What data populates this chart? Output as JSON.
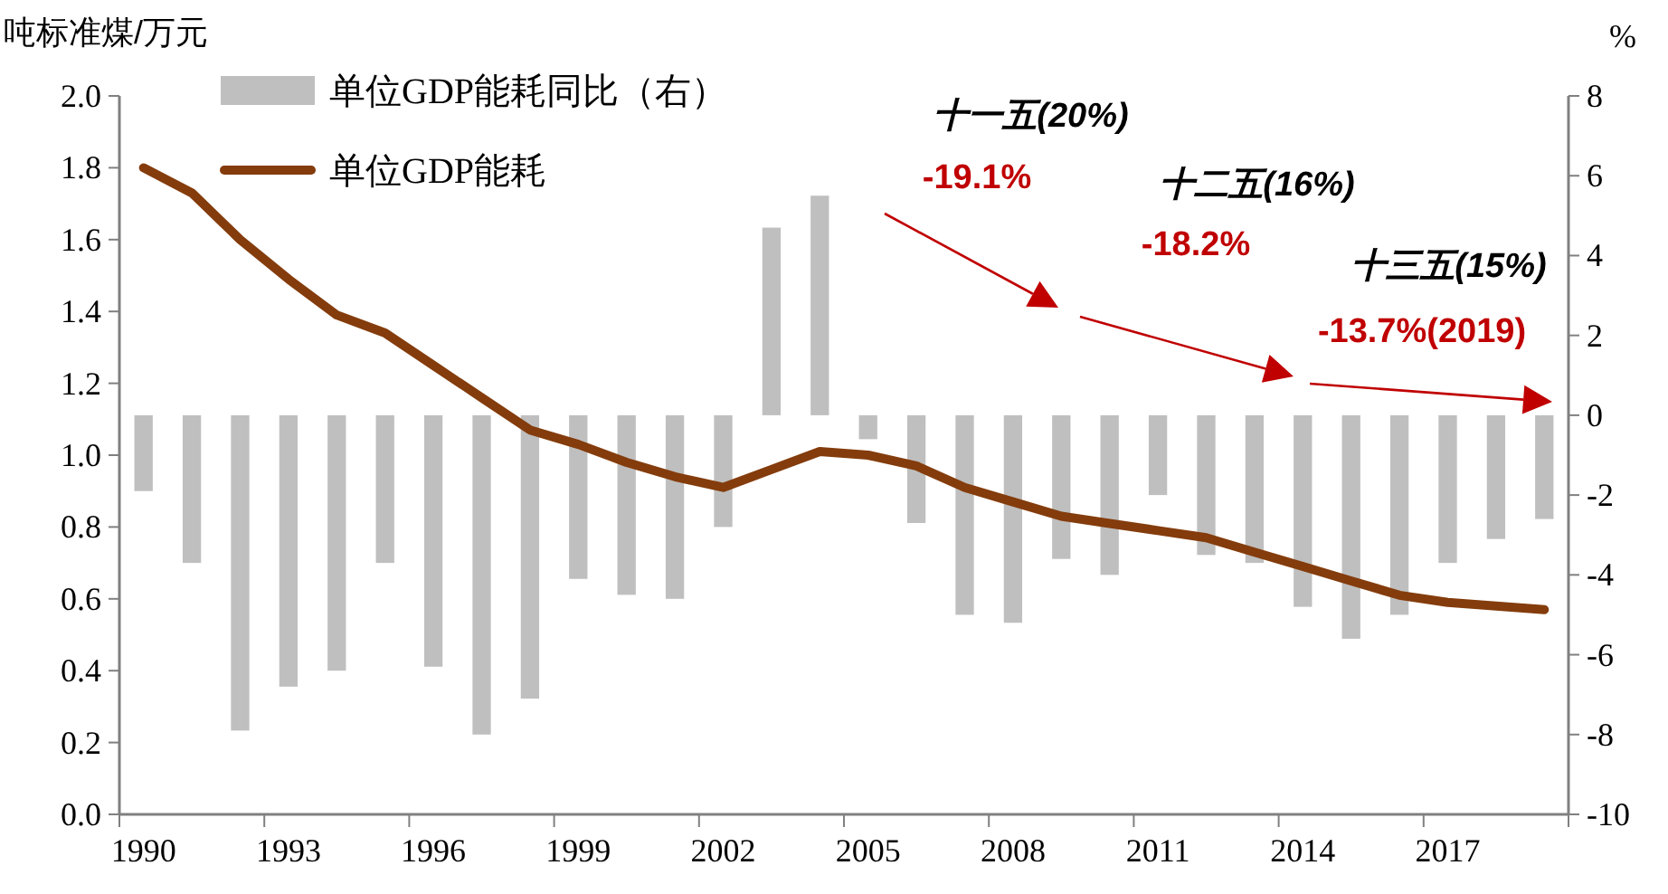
{
  "chart_data": {
    "type": "bar",
    "ylabel": "吨标准煤/万元",
    "y2label": "%",
    "categories": [
      "1990",
      null,
      null,
      "1993",
      null,
      null,
      "1996",
      null,
      null,
      "1999",
      null,
      null,
      "2002",
      null,
      null,
      "2005",
      null,
      null,
      "2008",
      null,
      null,
      "2011",
      null,
      null,
      "2014",
      null,
      null,
      "2017",
      null,
      null
    ],
    "series": [
      {
        "name": "单位GDP能耗同比（右）",
        "axis": "y2",
        "color": "#bfbfbf",
        "values": [
          -1.9,
          -3.7,
          -7.9,
          -6.8,
          -6.4,
          -3.7,
          -6.3,
          -8.0,
          -7.1,
          -4.1,
          -4.5,
          -4.6,
          -2.8,
          4.7,
          5.5,
          -0.6,
          -2.7,
          -5.0,
          -5.2,
          -3.6,
          -4.0,
          -2.0,
          -3.5,
          -3.7,
          -4.8,
          -5.6,
          -5.0,
          -3.7,
          -3.1,
          -2.6
        ]
      },
      {
        "name": "单位GDP能耗",
        "type": "line",
        "color": "#843c0c",
        "values": [
          1.8,
          1.73,
          1.6,
          1.49,
          1.39,
          1.34,
          1.25,
          1.16,
          1.07,
          1.03,
          0.98,
          0.94,
          0.91,
          0.96,
          1.01,
          1.0,
          0.97,
          0.91,
          0.87,
          0.83,
          0.81,
          0.79,
          0.77,
          0.73,
          0.69,
          0.65,
          0.61,
          0.59,
          0.58,
          0.57
        ]
      }
    ],
    "ylim": [
      0,
      2
    ],
    "yticks": [
      {
        "value": 0,
        "label": "0.0"
      },
      0.2,
      0.4,
      0.6,
      0.8,
      {
        "value": 1,
        "label": "1.0"
      },
      1.2,
      1.4,
      1.6,
      1.8,
      {
        "value": 2,
        "label": "2.0"
      }
    ],
    "y2lim": [
      -10,
      8
    ],
    "y2ticks": [
      -10,
      -8,
      -6,
      -4,
      -2,
      0,
      2,
      4,
      6,
      8
    ],
    "legend": "top left",
    "annotations": [
      "十一五(20%)",
      "-19.1%",
      "十二五(16%)",
      "-18.2%",
      "十三五(15%)",
      "-13.7%(2019)"
    ]
  }
}
